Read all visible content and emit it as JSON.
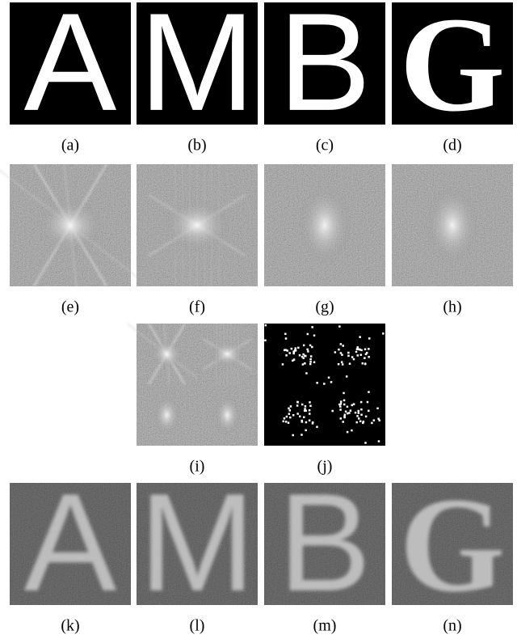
{
  "panels": [
    {
      "label": "(a)",
      "letter": "A"
    },
    {
      "label": "(b)",
      "letter": "M"
    },
    {
      "label": "(c)",
      "letter": "B"
    },
    {
      "label": "(d)",
      "letter": "G"
    },
    {
      "label": "(e)"
    },
    {
      "label": "(f)"
    },
    {
      "label": "(g)"
    },
    {
      "label": "(h)"
    },
    {
      "label": "(i)"
    },
    {
      "label": "(j)"
    },
    {
      "label": "(k)",
      "letter": "A"
    },
    {
      "label": "(l)",
      "letter": "M"
    },
    {
      "label": "(m)",
      "letter": "B"
    },
    {
      "label": "(n)",
      "letter": "G"
    }
  ]
}
